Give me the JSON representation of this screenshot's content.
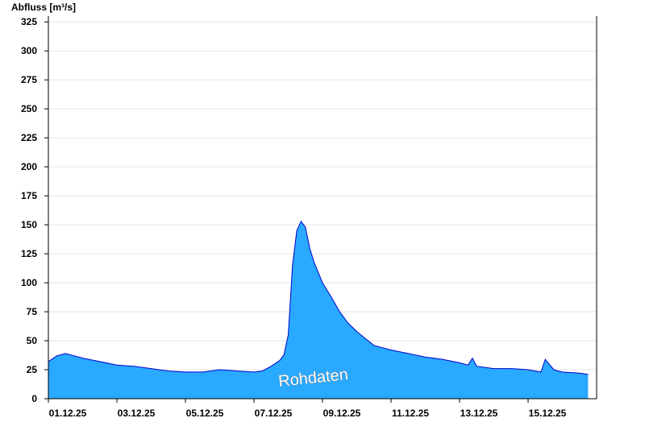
{
  "colors": {
    "area_fill": "#29a9ff",
    "line": "#0000cc",
    "grid": "#e6e6e6",
    "axis": "#000000",
    "day_line": "#1a5fa8"
  },
  "chart_data": {
    "type": "area",
    "ylabel": "Abfluss [m³/s]",
    "annotation": "Rohdaten",
    "ylim": [
      0,
      330
    ],
    "yticks": [
      0,
      25,
      50,
      75,
      100,
      125,
      150,
      175,
      200,
      225,
      250,
      275,
      300,
      325
    ],
    "xlim": [
      "2025-12-01",
      "2025-12-17"
    ],
    "xticks": [
      "01.12.25",
      "03.12.25",
      "05.12.25",
      "07.12.25",
      "09.12.25",
      "11.12.25",
      "13.12.25",
      "15.12.25"
    ],
    "grid": true,
    "series": [
      {
        "name": "",
        "x": [
          "2025-12-01 00:00",
          "2025-12-01 06:00",
          "2025-12-01 12:00",
          "2025-12-01 18:00",
          "2025-12-02 00:00",
          "2025-12-02 12:00",
          "2025-12-03 00:00",
          "2025-12-03 12:00",
          "2025-12-04 00:00",
          "2025-12-04 12:00",
          "2025-12-05 00:00",
          "2025-12-05 12:00",
          "2025-12-06 00:00",
          "2025-12-06 12:00",
          "2025-12-07 00:00",
          "2025-12-07 06:00",
          "2025-12-07 12:00",
          "2025-12-07 18:00",
          "2025-12-07 21:00",
          "2025-12-08 00:00",
          "2025-12-08 03:00",
          "2025-12-08 06:00",
          "2025-12-08 09:00",
          "2025-12-08 12:00",
          "2025-12-08 15:00",
          "2025-12-08 18:00",
          "2025-12-09 00:00",
          "2025-12-09 06:00",
          "2025-12-09 12:00",
          "2025-12-09 18:00",
          "2025-12-10 00:00",
          "2025-12-10 06:00",
          "2025-12-10 12:00",
          "2025-12-10 18:00",
          "2025-12-11 00:00",
          "2025-12-11 12:00",
          "2025-12-12 00:00",
          "2025-12-12 12:00",
          "2025-12-13 00:00",
          "2025-12-13 06:00",
          "2025-12-13 09:00",
          "2025-12-13 12:00",
          "2025-12-14 00:00",
          "2025-12-14 12:00",
          "2025-12-15 00:00",
          "2025-12-15 09:00",
          "2025-12-15 12:00",
          "2025-12-15 18:00",
          "2025-12-16 00:00",
          "2025-12-16 12:00",
          "2025-12-16 18:00"
        ],
        "y": [
          32,
          37,
          39,
          37,
          35,
          32,
          29,
          28,
          26,
          24,
          23,
          23,
          25,
          24,
          23,
          24,
          28,
          33,
          38,
          55,
          115,
          145,
          153,
          148,
          130,
          118,
          100,
          88,
          75,
          65,
          58,
          52,
          46,
          44,
          42,
          39,
          36,
          34,
          31,
          29,
          35,
          28,
          26,
          26,
          25,
          23,
          34,
          25,
          23,
          22,
          21
        ]
      }
    ]
  }
}
